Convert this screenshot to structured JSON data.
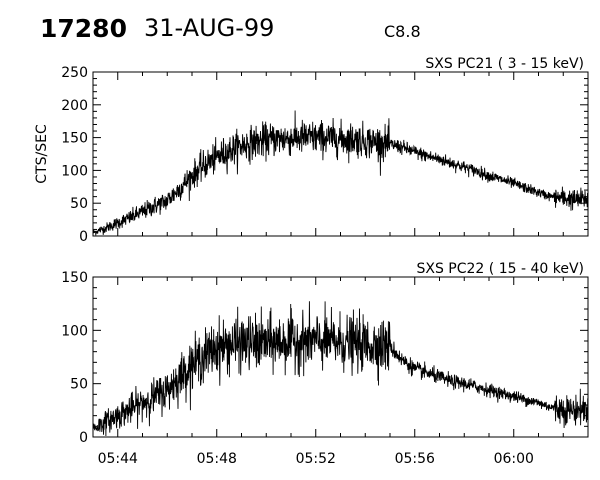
{
  "header": {
    "event_id": "17280",
    "date": "31-AUG-99",
    "flare_class": "C8.8"
  },
  "chart_data": [
    {
      "type": "line",
      "title": "SXS PC21  (  3 - 15 keV)",
      "ylabel": "CTS/SEC",
      "xlabel": "",
      "xlim": [
        "05:43",
        "06:03"
      ],
      "ylim": [
        0,
        250
      ],
      "yticks": [
        0,
        50,
        100,
        150,
        200,
        250
      ],
      "xticks": [
        "05:44",
        "05:48",
        "05:52",
        "05:56",
        "06:00"
      ],
      "grid": false,
      "series": [
        {
          "x": [
            "05:43:00",
            "05:43:30",
            "05:44:00",
            "05:44:30",
            "05:45:00",
            "05:45:30",
            "05:46:00",
            "05:46:30",
            "05:47:00",
            "05:47:30",
            "05:48:00",
            "05:48:30",
            "05:49:00",
            "05:49:30",
            "05:50:00",
            "05:50:30",
            "05:51:00",
            "05:51:30",
            "05:52:00",
            "05:52:30",
            "05:53:00",
            "05:53:30",
            "05:54:00",
            "05:54:30",
            "05:55:00",
            "05:55:30",
            "05:56:00",
            "05:56:30",
            "05:57:00",
            "05:57:30",
            "05:58:00",
            "05:58:30",
            "05:59:00",
            "05:59:30",
            "06:00:00",
            "06:00:30",
            "06:01:00",
            "06:01:30",
            "06:02:00",
            "06:02:30",
            "06:03:00"
          ],
          "values": [
            5,
            12,
            20,
            28,
            37,
            46,
            54,
            72,
            92,
            108,
            120,
            130,
            138,
            143,
            146,
            148,
            149,
            150,
            150,
            149,
            148,
            147,
            145,
            143,
            140,
            135,
            128,
            122,
            117,
            111,
            105,
            99,
            92,
            86,
            80,
            73,
            66,
            60,
            58,
            55,
            57
          ]
        }
      ]
    },
    {
      "type": "line",
      "title": "SXS PC22  ( 15 - 40 keV)",
      "ylabel": "",
      "xlabel": "",
      "xlim": [
        "05:43",
        "06:03"
      ],
      "ylim": [
        0,
        150
      ],
      "yticks": [
        0,
        50,
        100,
        150
      ],
      "xticks": [
        "05:44",
        "05:48",
        "05:52",
        "05:56",
        "06:00"
      ],
      "grid": false,
      "series": [
        {
          "x": [
            "05:43:00",
            "05:43:30",
            "05:44:00",
            "05:44:30",
            "05:45:00",
            "05:45:30",
            "05:46:00",
            "05:46:30",
            "05:47:00",
            "05:47:30",
            "05:48:00",
            "05:48:30",
            "05:49:00",
            "05:49:30",
            "05:50:00",
            "05:50:30",
            "05:51:00",
            "05:51:30",
            "05:52:00",
            "05:52:30",
            "05:53:00",
            "05:53:30",
            "05:54:00",
            "05:54:30",
            "05:55:00",
            "05:55:30",
            "05:56:00",
            "05:56:30",
            "05:57:00",
            "05:57:30",
            "05:58:00",
            "05:58:30",
            "05:59:00",
            "05:59:30",
            "06:00:00",
            "06:00:30",
            "06:01:00",
            "06:01:30",
            "06:02:00",
            "06:02:30",
            "06:03:00"
          ],
          "values": [
            8,
            14,
            20,
            26,
            32,
            38,
            44,
            56,
            68,
            76,
            84,
            86,
            88,
            88,
            88,
            89,
            90,
            90,
            90,
            89,
            89,
            88,
            87,
            86,
            85,
            72,
            64,
            60,
            56,
            52,
            50,
            47,
            44,
            41,
            38,
            35,
            32,
            28,
            26,
            25,
            27
          ]
        }
      ]
    }
  ]
}
